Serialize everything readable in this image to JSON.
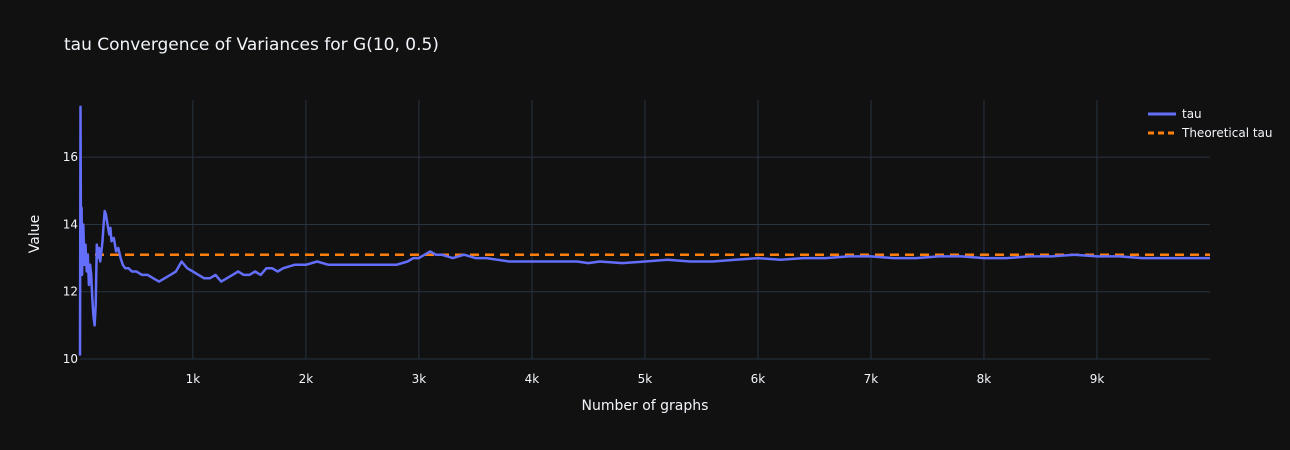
{
  "chart_data": {
    "type": "line",
    "title": "tau Convergence of Variances for G(10, 0.5)",
    "xlabel": "Number of graphs",
    "ylabel": "Value",
    "xlim": [
      1,
      10000
    ],
    "ylim": [
      10,
      17.7
    ],
    "x_ticks": [
      {
        "value": 1000,
        "label": "1k"
      },
      {
        "value": 2000,
        "label": "2k"
      },
      {
        "value": 3000,
        "label": "3k"
      },
      {
        "value": 4000,
        "label": "4k"
      },
      {
        "value": 5000,
        "label": "5k"
      },
      {
        "value": 6000,
        "label": "6k"
      },
      {
        "value": 7000,
        "label": "7k"
      },
      {
        "value": 8000,
        "label": "8k"
      },
      {
        "value": 9000,
        "label": "9k"
      }
    ],
    "y_ticks": [
      {
        "value": 10,
        "label": "10"
      },
      {
        "value": 12,
        "label": "12"
      },
      {
        "value": 14,
        "label": "14"
      },
      {
        "value": 16,
        "label": "16"
      }
    ],
    "grid": true,
    "legend_position": "top-right",
    "background": "#111111",
    "grid_color": "#283442",
    "series": [
      {
        "name": "tau",
        "color": "#636efa",
        "style": "solid",
        "x": [
          1,
          5,
          10,
          15,
          20,
          25,
          30,
          40,
          50,
          60,
          70,
          80,
          90,
          100,
          110,
          120,
          130,
          140,
          150,
          160,
          170,
          180,
          190,
          200,
          210,
          220,
          230,
          240,
          250,
          260,
          270,
          280,
          300,
          320,
          340,
          360,
          380,
          400,
          430,
          460,
          500,
          550,
          600,
          650,
          700,
          750,
          800,
          850,
          900,
          950,
          1000,
          1050,
          1100,
          1150,
          1200,
          1250,
          1300,
          1350,
          1400,
          1450,
          1500,
          1550,
          1600,
          1650,
          1700,
          1750,
          1800,
          1900,
          2000,
          2100,
          2200,
          2300,
          2400,
          2500,
          2600,
          2700,
          2800,
          2900,
          2950,
          3000,
          3050,
          3100,
          3150,
          3200,
          3300,
          3400,
          3500,
          3600,
          3800,
          4000,
          4200,
          4400,
          4500,
          4600,
          4800,
          5000,
          5200,
          5400,
          5600,
          5800,
          6000,
          6200,
          6400,
          6600,
          6800,
          7000,
          7200,
          7400,
          7600,
          7800,
          8000,
          8200,
          8400,
          8600,
          8800,
          9000,
          9200,
          9400,
          9600,
          9800,
          10000
        ],
        "y": [
          10.1,
          17.5,
          13.2,
          14.5,
          12.5,
          13.6,
          14.0,
          12.8,
          13.4,
          12.6,
          13.1,
          12.2,
          12.8,
          12.5,
          11.8,
          11.3,
          11.0,
          11.6,
          13.4,
          13.0,
          13.3,
          12.9,
          13.2,
          13.5,
          14.0,
          14.4,
          14.3,
          14.1,
          13.9,
          13.7,
          13.9,
          13.5,
          13.6,
          13.2,
          13.3,
          13.0,
          12.8,
          12.7,
          12.7,
          12.6,
          12.6,
          12.5,
          12.5,
          12.4,
          12.3,
          12.4,
          12.5,
          12.6,
          12.9,
          12.7,
          12.6,
          12.5,
          12.4,
          12.4,
          12.5,
          12.3,
          12.4,
          12.5,
          12.6,
          12.5,
          12.5,
          12.6,
          12.5,
          12.7,
          12.7,
          12.6,
          12.7,
          12.8,
          12.8,
          12.9,
          12.8,
          12.8,
          12.8,
          12.8,
          12.8,
          12.8,
          12.8,
          12.9,
          13.0,
          13.0,
          13.1,
          13.2,
          13.1,
          13.1,
          13.0,
          13.1,
          13.0,
          13.0,
          12.9,
          12.9,
          12.9,
          12.9,
          12.85,
          12.9,
          12.85,
          12.9,
          12.95,
          12.9,
          12.9,
          12.95,
          13.0,
          12.95,
          13.0,
          13.0,
          13.05,
          13.05,
          13.0,
          13.0,
          13.05,
          13.05,
          13.0,
          13.0,
          13.05,
          13.05,
          13.1,
          13.05,
          13.05,
          13.0,
          13.0,
          13.0,
          13.0
        ]
      },
      {
        "name": "Theoretical tau",
        "color": "#ff7f0e",
        "style": "dash",
        "x": [
          1,
          10000
        ],
        "y": [
          13.1,
          13.1
        ]
      }
    ]
  }
}
